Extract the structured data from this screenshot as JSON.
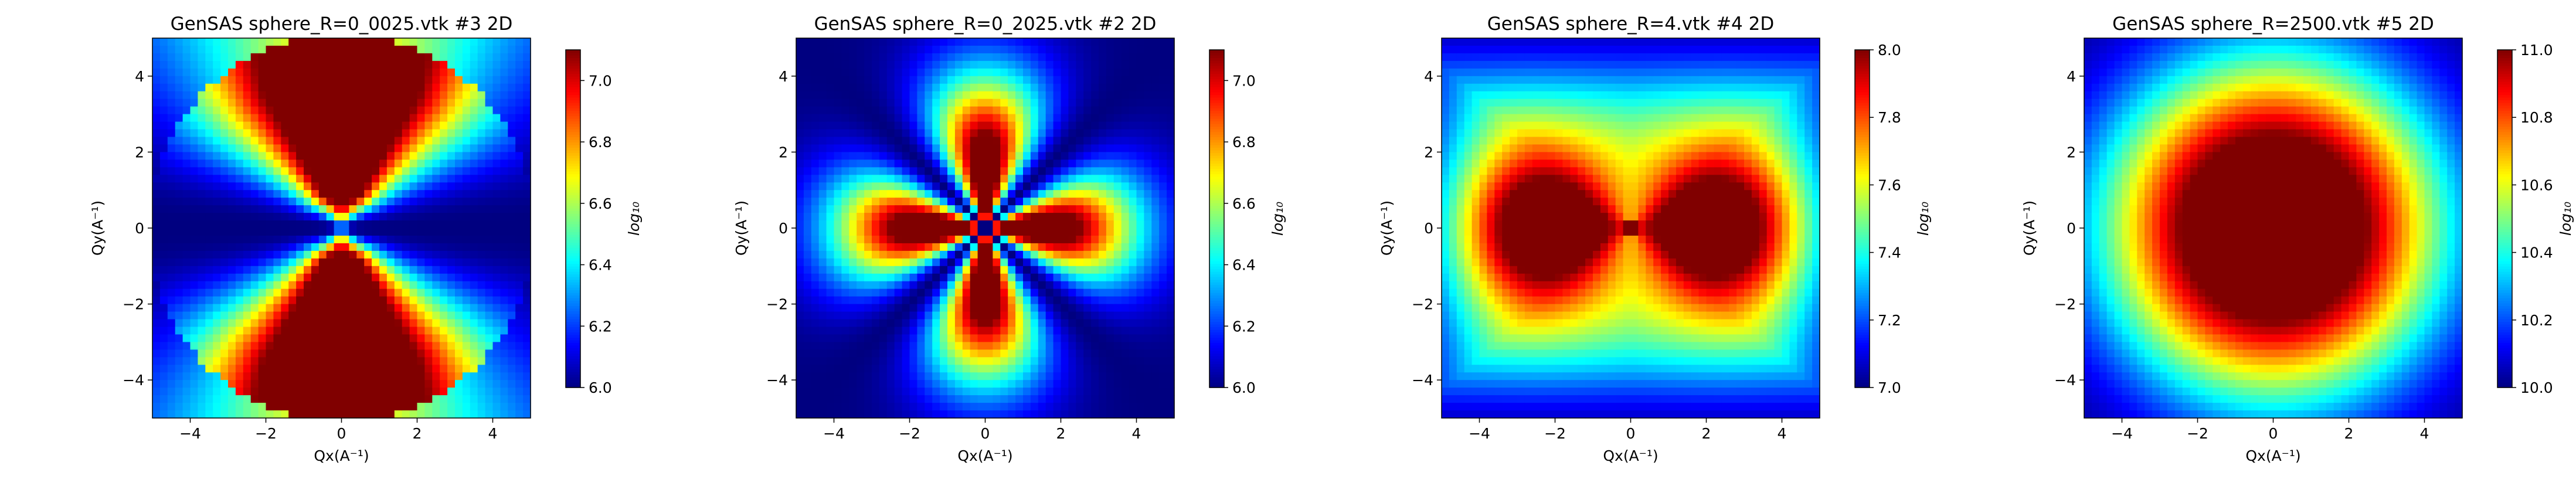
{
  "figure": {
    "colormap": "jet",
    "background": "#ffffff"
  },
  "chart_data": [
    {
      "type": "heatmap",
      "title": "GenSAS sphere_R=0_0025.vtk  #3 2D",
      "xlabel": "Qx(A⁻¹)",
      "ylabel": "Qy(A⁻¹)",
      "xlim": [
        -5,
        5
      ],
      "ylim": [
        -5,
        5
      ],
      "xticks": [
        -4,
        -2,
        0,
        2,
        4
      ],
      "yticks": [
        -4,
        -2,
        0,
        2,
        4
      ],
      "xticklabels": [
        "−4",
        "−2",
        "0",
        "2",
        "4"
      ],
      "yticklabels": [
        "−4",
        "−2",
        "0",
        "2",
        "4"
      ],
      "grid_n": 50,
      "pattern": "dipole-y",
      "colorbar": {
        "label": "log₁₀",
        "range": [
          6.0,
          7.1
        ],
        "ticks": [
          6.0,
          6.2,
          6.4,
          6.6,
          6.8,
          7.0
        ],
        "ticklabels": [
          "6.0",
          "6.2",
          "6.4",
          "6.6",
          "6.8",
          "7.0"
        ]
      },
      "grid": false
    },
    {
      "type": "heatmap",
      "title": "GenSAS sphere_R=0_2025.vtk  #2 2D",
      "xlabel": "Qx(A⁻¹)",
      "ylabel": "Qy(A⁻¹)",
      "xlim": [
        -5,
        5
      ],
      "ylim": [
        -5,
        5
      ],
      "xticks": [
        -4,
        -2,
        0,
        2,
        4
      ],
      "yticks": [
        -4,
        -2,
        0,
        2,
        4
      ],
      "xticklabels": [
        "−4",
        "−2",
        "0",
        "2",
        "4"
      ],
      "yticklabels": [
        "−4",
        "−2",
        "0",
        "2",
        "4"
      ],
      "grid_n": 50,
      "pattern": "quadrupole",
      "colorbar": {
        "label": "log₁₀",
        "range": [
          6.0,
          7.1
        ],
        "ticks": [
          6.0,
          6.2,
          6.4,
          6.6,
          6.8,
          7.0
        ],
        "ticklabels": [
          "6.0",
          "6.2",
          "6.4",
          "6.6",
          "6.8",
          "7.0"
        ]
      },
      "grid": false
    },
    {
      "type": "heatmap",
      "title": "GenSAS sphere_R=4.vtk  #4 2D",
      "xlabel": "Qx(A⁻¹)",
      "ylabel": "Qy(A⁻¹)",
      "xlim": [
        -5,
        5
      ],
      "ylim": [
        -5,
        5
      ],
      "xticks": [
        -4,
        -2,
        0,
        2,
        4
      ],
      "yticks": [
        -4,
        -2,
        0,
        2,
        4
      ],
      "xticklabels": [
        "−4",
        "−2",
        "0",
        "2",
        "4"
      ],
      "yticklabels": [
        "−4",
        "−2",
        "0",
        "2",
        "4"
      ],
      "grid_n": 50,
      "pattern": "dipole-x",
      "colorbar": {
        "label": "log₁₀",
        "range": [
          7.0,
          8.0
        ],
        "ticks": [
          7.0,
          7.2,
          7.4,
          7.6,
          7.8,
          8.0
        ],
        "ticklabels": [
          "7.0",
          "7.2",
          "7.4",
          "7.6",
          "7.8",
          "8.0"
        ]
      },
      "grid": false
    },
    {
      "type": "heatmap",
      "title": "GenSAS sphere_R=2500.vtk  #5 2D",
      "xlabel": "Qx(A⁻¹)",
      "ylabel": "Qy(A⁻¹)",
      "xlim": [
        -5,
        5
      ],
      "ylim": [
        -5,
        5
      ],
      "xticks": [
        -4,
        -2,
        0,
        2,
        4
      ],
      "yticks": [
        -4,
        -2,
        0,
        2,
        4
      ],
      "xticklabels": [
        "−4",
        "−2",
        "0",
        "2",
        "4"
      ],
      "yticklabels": [
        "−4",
        "−2",
        "0",
        "2",
        "4"
      ],
      "grid_n": 50,
      "pattern": "isotropic",
      "colorbar": {
        "label": "log₁₀",
        "range": [
          10.0,
          11.0
        ],
        "ticks": [
          10.0,
          10.2,
          10.4,
          10.6,
          10.8,
          11.0
        ],
        "ticklabels": [
          "10.0",
          "10.2",
          "10.4",
          "10.6",
          "10.8",
          "11.0"
        ]
      },
      "grid": false
    }
  ]
}
